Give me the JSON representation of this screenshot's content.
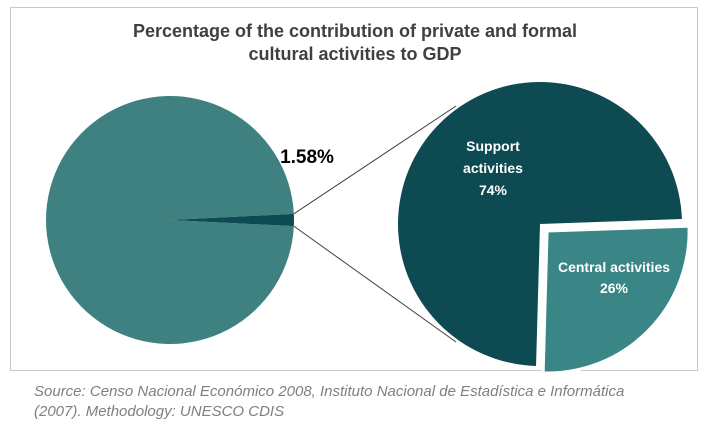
{
  "chart_data": {
    "type": "pie",
    "title_line1": "Percentage of the contribution of private and formal",
    "title_line2": "cultural activities to GDP",
    "main_pie": {
      "slices": [
        {
          "name": "",
          "value": 98.42
        },
        {
          "name": "",
          "value": 1.58,
          "label": "1.58%"
        }
      ]
    },
    "detail_pie": {
      "slices": [
        {
          "name_line1": "Support",
          "name_line2": "activities",
          "value": 74,
          "label": "74%"
        },
        {
          "name_line1": "Central activities",
          "value": 26,
          "label": "26%"
        }
      ]
    },
    "colors": {
      "main": "#3f8080",
      "dark": "#0d4a52",
      "mid": "#3a8585"
    }
  },
  "source": {
    "line1": "Source:  Censo Nacional Económico 2008, Instituto Nacional de Estadística e Informática",
    "line2": "(2007). Methodology: UNESCO CDIS"
  }
}
